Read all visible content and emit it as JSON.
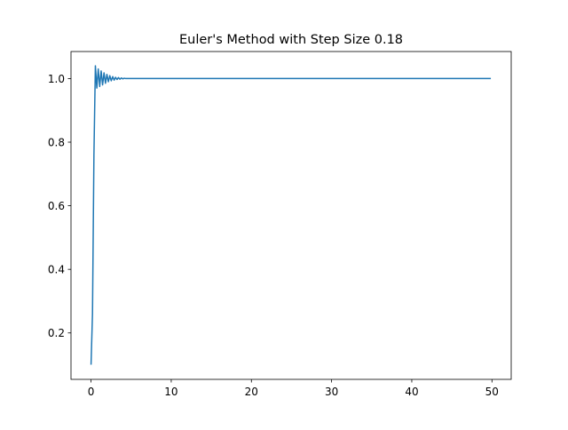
{
  "chart_data": {
    "type": "line",
    "title": "Euler's Method with Step Size 0.18",
    "xlabel": "",
    "ylabel": "",
    "xlim": [
      -2.5,
      52.4
    ],
    "ylim": [
      0.054,
      1.085
    ],
    "xticks": [
      0,
      10,
      20,
      30,
      40,
      50
    ],
    "xtick_labels": [
      "0",
      "10",
      "20",
      "30",
      "40",
      "50"
    ],
    "yticks": [
      0.2,
      0.4,
      0.6,
      0.8,
      1.0
    ],
    "ytick_labels": [
      "0.2",
      "0.4",
      "0.6",
      "0.8",
      "1.0"
    ],
    "grid": false,
    "series": [
      {
        "color": "#1f77b4",
        "x": [
          0,
          0.18,
          0.36,
          0.54,
          0.72,
          0.9,
          1.08,
          1.26,
          1.44,
          1.62,
          1.8,
          1.98,
          2.16,
          2.34,
          2.52,
          2.7,
          2.88,
          3.06,
          3.24,
          3.42,
          3.6,
          3.78,
          3.96,
          4.14,
          4.32,
          4.5,
          5.0,
          10.0,
          20.0,
          30.0,
          40.0,
          49.86
        ],
        "y": [
          0.1,
          0.26,
          0.76,
          1.04,
          0.97,
          1.03,
          0.975,
          1.024,
          0.98,
          1.018,
          0.985,
          1.013,
          0.99,
          1.009,
          0.993,
          1.006,
          0.995,
          1.004,
          0.997,
          1.003,
          0.998,
          1.002,
          0.999,
          1.001,
          1.0,
          1.0,
          1.0,
          1.0,
          1.0,
          1.0,
          1.0,
          1.0
        ]
      }
    ]
  }
}
